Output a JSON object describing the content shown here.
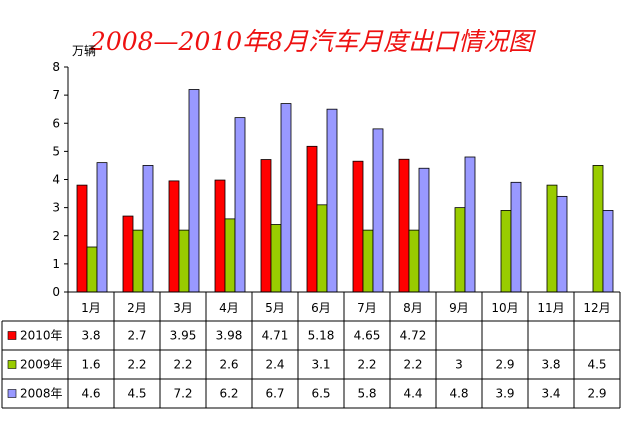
{
  "chart_data": {
    "type": "bar",
    "title": "2008—2010年8月汽车月度出口情况图",
    "ylabel": "万辆",
    "ylim": [
      0,
      8
    ],
    "yticks": [
      "0",
      "1",
      "2",
      "3",
      "4",
      "5",
      "6",
      "7",
      "8"
    ],
    "grid": false,
    "legend": "data-table",
    "categories": [
      "1月",
      "2月",
      "3月",
      "4月",
      "5月",
      "6月",
      "7月",
      "8月",
      "9月",
      "10月",
      "11月",
      "12月"
    ],
    "series": [
      {
        "name": "2010年",
        "color": "#ff0000",
        "values": [
          3.8,
          2.7,
          3.95,
          3.98,
          4.71,
          5.18,
          4.65,
          4.72,
          null,
          null,
          null,
          null
        ],
        "labels": [
          "3.8",
          "2.7",
          "3.95",
          "3.98",
          "4.71",
          "5.18",
          "4.65",
          "4.72",
          "",
          "",
          "",
          ""
        ]
      },
      {
        "name": "2009年",
        "color": "#99cc00",
        "values": [
          1.6,
          2.2,
          2.2,
          2.6,
          2.4,
          3.1,
          2.2,
          2.2,
          3,
          2.9,
          3.8,
          4.5
        ],
        "labels": [
          "1.6",
          "2.2",
          "2.2",
          "2.6",
          "2.4",
          "3.1",
          "2.2",
          "2.2",
          "3",
          "2.9",
          "3.8",
          "4.5"
        ]
      },
      {
        "name": "2008年",
        "color": "#9999ff",
        "values": [
          4.6,
          4.5,
          7.2,
          6.2,
          6.7,
          6.5,
          5.8,
          4.4,
          4.8,
          3.9,
          3.4,
          2.9
        ],
        "labels": [
          "4.6",
          "4.5",
          "7.2",
          "6.2",
          "6.7",
          "6.5",
          "5.8",
          "4.4",
          "4.8",
          "3.9",
          "3.4",
          "2.9"
        ]
      }
    ]
  }
}
